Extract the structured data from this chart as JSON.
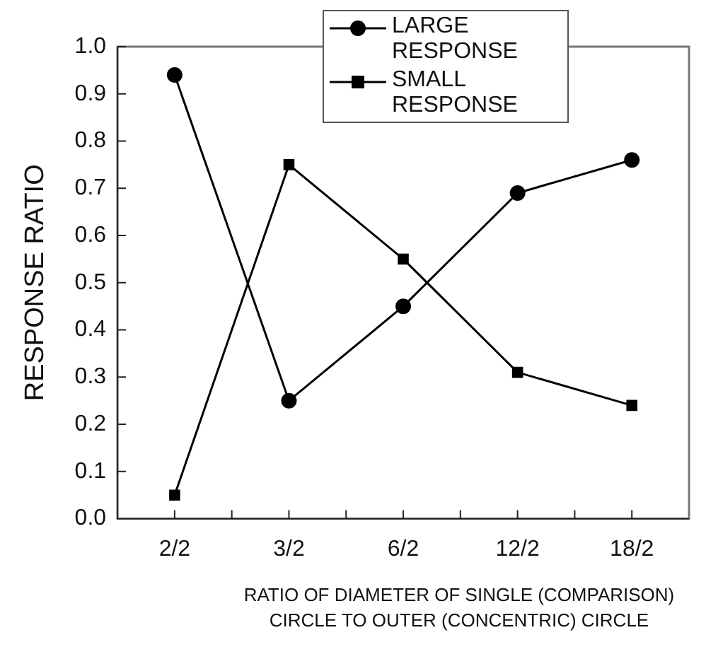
{
  "chart_data": {
    "type": "line",
    "xlabel": "RATIO OF DIAMETER OF SINGLE (COMPARISON) CIRCLE TO OUTER (CONCENTRIC) CIRCLE",
    "ylabel": "RESPONSE RATIO",
    "categories": [
      "2/2",
      "3/2",
      "6/2",
      "12/2",
      "18/2"
    ],
    "series": [
      {
        "name": "LARGE RESPONSE",
        "color": "#000000",
        "marker": "circle",
        "values": [
          0.94,
          0.25,
          0.45,
          0.69,
          0.76
        ]
      },
      {
        "name": "SMALL RESPONSE",
        "color": "#000000",
        "marker": "square",
        "values": [
          0.05,
          0.75,
          0.55,
          0.31,
          0.24
        ]
      }
    ],
    "ylim": [
      0,
      1
    ],
    "yticks": [
      {
        "value": 0,
        "label": "0.0"
      },
      0.1,
      0.2,
      0.3,
      0.4,
      0.5,
      0.6,
      0.7,
      0.8,
      0.9,
      {
        "value": 1,
        "label": "1.0"
      }
    ],
    "grid": false,
    "legend": "top right",
    "line_style": "solid"
  }
}
